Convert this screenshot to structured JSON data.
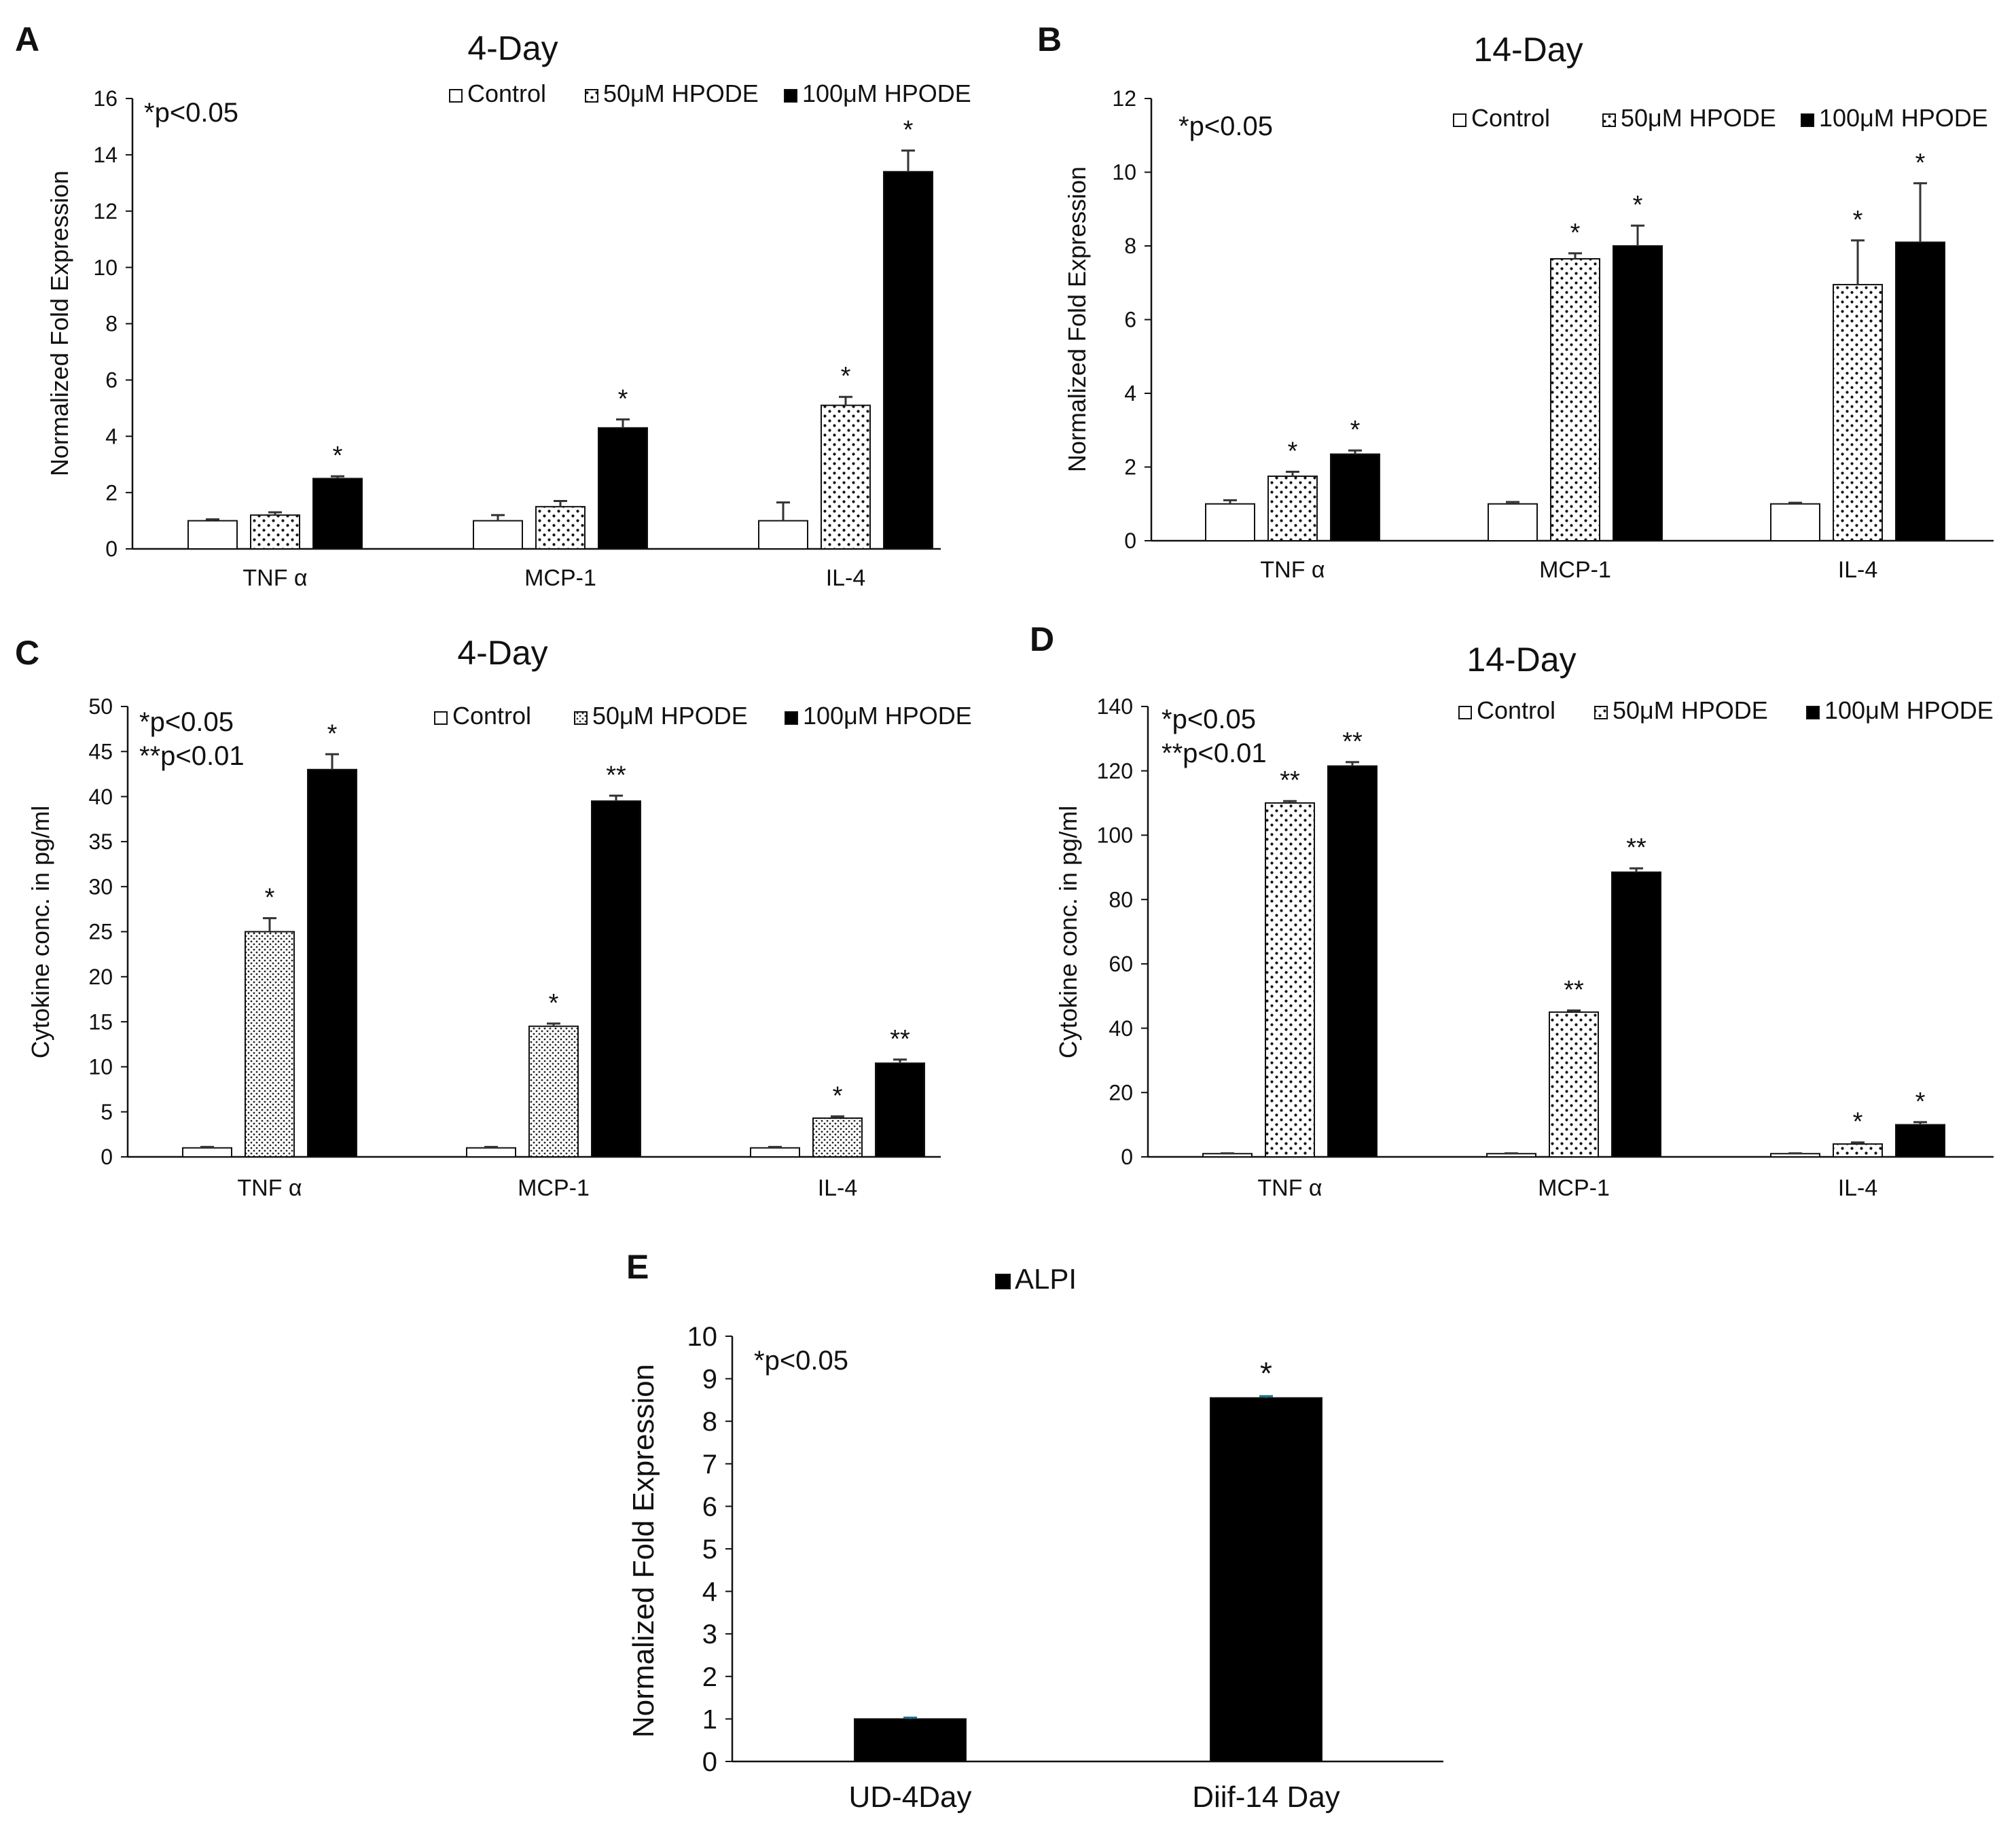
{
  "chart_data": [
    {
      "panel": "A",
      "type": "bar",
      "title": "4-Day",
      "ylabel": "Normalized  Fold Expression",
      "xlabel": "",
      "ylim": [
        0,
        16
      ],
      "yticks": [
        0,
        2,
        4,
        6,
        8,
        10,
        12,
        14,
        16
      ],
      "note": [
        "*p<0.05"
      ],
      "categories": [
        "TNF α",
        "MCP-1",
        "IL-4"
      ],
      "series": [
        {
          "name": "Control",
          "fill": "white",
          "values": [
            1.0,
            1.0,
            1.0
          ],
          "errors": [
            0.05,
            0.2,
            0.65
          ],
          "sig": [
            "",
            "",
            ""
          ]
        },
        {
          "name": "50μM HPODE",
          "fill": "dots",
          "values": [
            1.2,
            1.5,
            5.1
          ],
          "errors": [
            0.1,
            0.2,
            0.3
          ],
          "sig": [
            "",
            "",
            "*"
          ]
        },
        {
          "name": "100μM HPODE",
          "fill": "black",
          "values": [
            2.5,
            4.3,
            13.4
          ],
          "errors": [
            0.08,
            0.3,
            0.75
          ],
          "sig": [
            "*",
            "*",
            "*"
          ]
        }
      ]
    },
    {
      "panel": "B",
      "type": "bar",
      "title": "14-Day",
      "ylabel": "Normalized  Fold Expression",
      "xlabel": "",
      "ylim": [
        0,
        12
      ],
      "yticks": [
        0,
        2,
        4,
        6,
        8,
        10,
        12
      ],
      "note": [
        "*p<0.05"
      ],
      "categories": [
        "TNF α",
        "MCP-1",
        "IL-4"
      ],
      "series": [
        {
          "name": "Control",
          "fill": "white",
          "values": [
            1.0,
            1.0,
            1.0
          ],
          "errors": [
            0.1,
            0.05,
            0.03
          ],
          "sig": [
            "",
            "",
            ""
          ]
        },
        {
          "name": "50μM HPODE",
          "fill": "dots",
          "values": [
            1.75,
            7.65,
            6.95
          ],
          "errors": [
            0.12,
            0.15,
            1.2
          ],
          "sig": [
            "*",
            "*",
            "*"
          ]
        },
        {
          "name": "100μM HPODE",
          "fill": "black",
          "values": [
            2.35,
            8.0,
            8.1
          ],
          "errors": [
            0.1,
            0.55,
            1.6
          ],
          "sig": [
            "*",
            "*",
            "*"
          ]
        }
      ]
    },
    {
      "panel": "C",
      "type": "bar",
      "title": "4-Day",
      "ylabel": "Cytokine conc. in pg/ml",
      "xlabel": "",
      "ylim": [
        0,
        50
      ],
      "yticks": [
        0,
        5,
        10,
        15,
        20,
        25,
        30,
        35,
        40,
        45,
        50
      ],
      "note": [
        "*p<0.05",
        "**p<0.01"
      ],
      "categories": [
        "TNF α",
        "MCP-1",
        "IL-4"
      ],
      "series": [
        {
          "name": "Control",
          "fill": "white",
          "values": [
            1.0,
            1.0,
            1.0
          ],
          "errors": [
            0.1,
            0.1,
            0.1
          ],
          "sig": [
            "",
            "",
            ""
          ]
        },
        {
          "name": "50μM HPODE",
          "fill": "dense",
          "values": [
            25.0,
            14.5,
            4.3
          ],
          "errors": [
            1.5,
            0.3,
            0.2
          ],
          "sig": [
            "*",
            "*",
            "*"
          ]
        },
        {
          "name": "100μM HPODE",
          "fill": "black",
          "values": [
            43.0,
            39.5,
            10.4
          ],
          "errors": [
            1.7,
            0.6,
            0.4
          ],
          "sig": [
            "*",
            "**",
            "**"
          ]
        }
      ]
    },
    {
      "panel": "D",
      "type": "bar",
      "title": "14-Day",
      "ylabel": "Cytokine conc. in pg/ml",
      "xlabel": "",
      "ylim": [
        0,
        140
      ],
      "yticks": [
        0,
        20,
        40,
        60,
        80,
        100,
        120,
        140
      ],
      "note": [
        "*p<0.05",
        "**p<0.01"
      ],
      "categories": [
        "TNF α",
        "MCP-1",
        "IL-4"
      ],
      "series": [
        {
          "name": "Control",
          "fill": "white",
          "values": [
            1.0,
            1.0,
            1.0
          ],
          "errors": [
            0.1,
            0.1,
            0.1
          ],
          "sig": [
            "",
            "",
            ""
          ]
        },
        {
          "name": "50μM HPODE",
          "fill": "dots",
          "values": [
            110.0,
            45.0,
            4.0
          ],
          "errors": [
            0.6,
            0.5,
            0.5
          ],
          "sig": [
            "**",
            "**",
            "*"
          ]
        },
        {
          "name": "100μM HPODE",
          "fill": "black",
          "values": [
            121.5,
            88.5,
            10.0
          ],
          "errors": [
            1.2,
            1.2,
            0.8
          ],
          "sig": [
            "**",
            "**",
            "*"
          ]
        }
      ]
    },
    {
      "panel": "E",
      "type": "bar",
      "title": "",
      "ylabel": "Normalized Fold Expression",
      "xlabel": "",
      "ylim": [
        0,
        10
      ],
      "yticks": [
        0,
        1,
        2,
        3,
        4,
        5,
        6,
        7,
        8,
        9,
        10
      ],
      "note": [
        "*p<0.05"
      ],
      "categories": [
        "UD-4Day",
        "Diif-14 Day"
      ],
      "series": [
        {
          "name": "ALPI",
          "fill": "black",
          "values": [
            1.0,
            8.55
          ],
          "errors": [
            0.03,
            0.04
          ],
          "sig": [
            "",
            "*"
          ]
        }
      ]
    }
  ]
}
